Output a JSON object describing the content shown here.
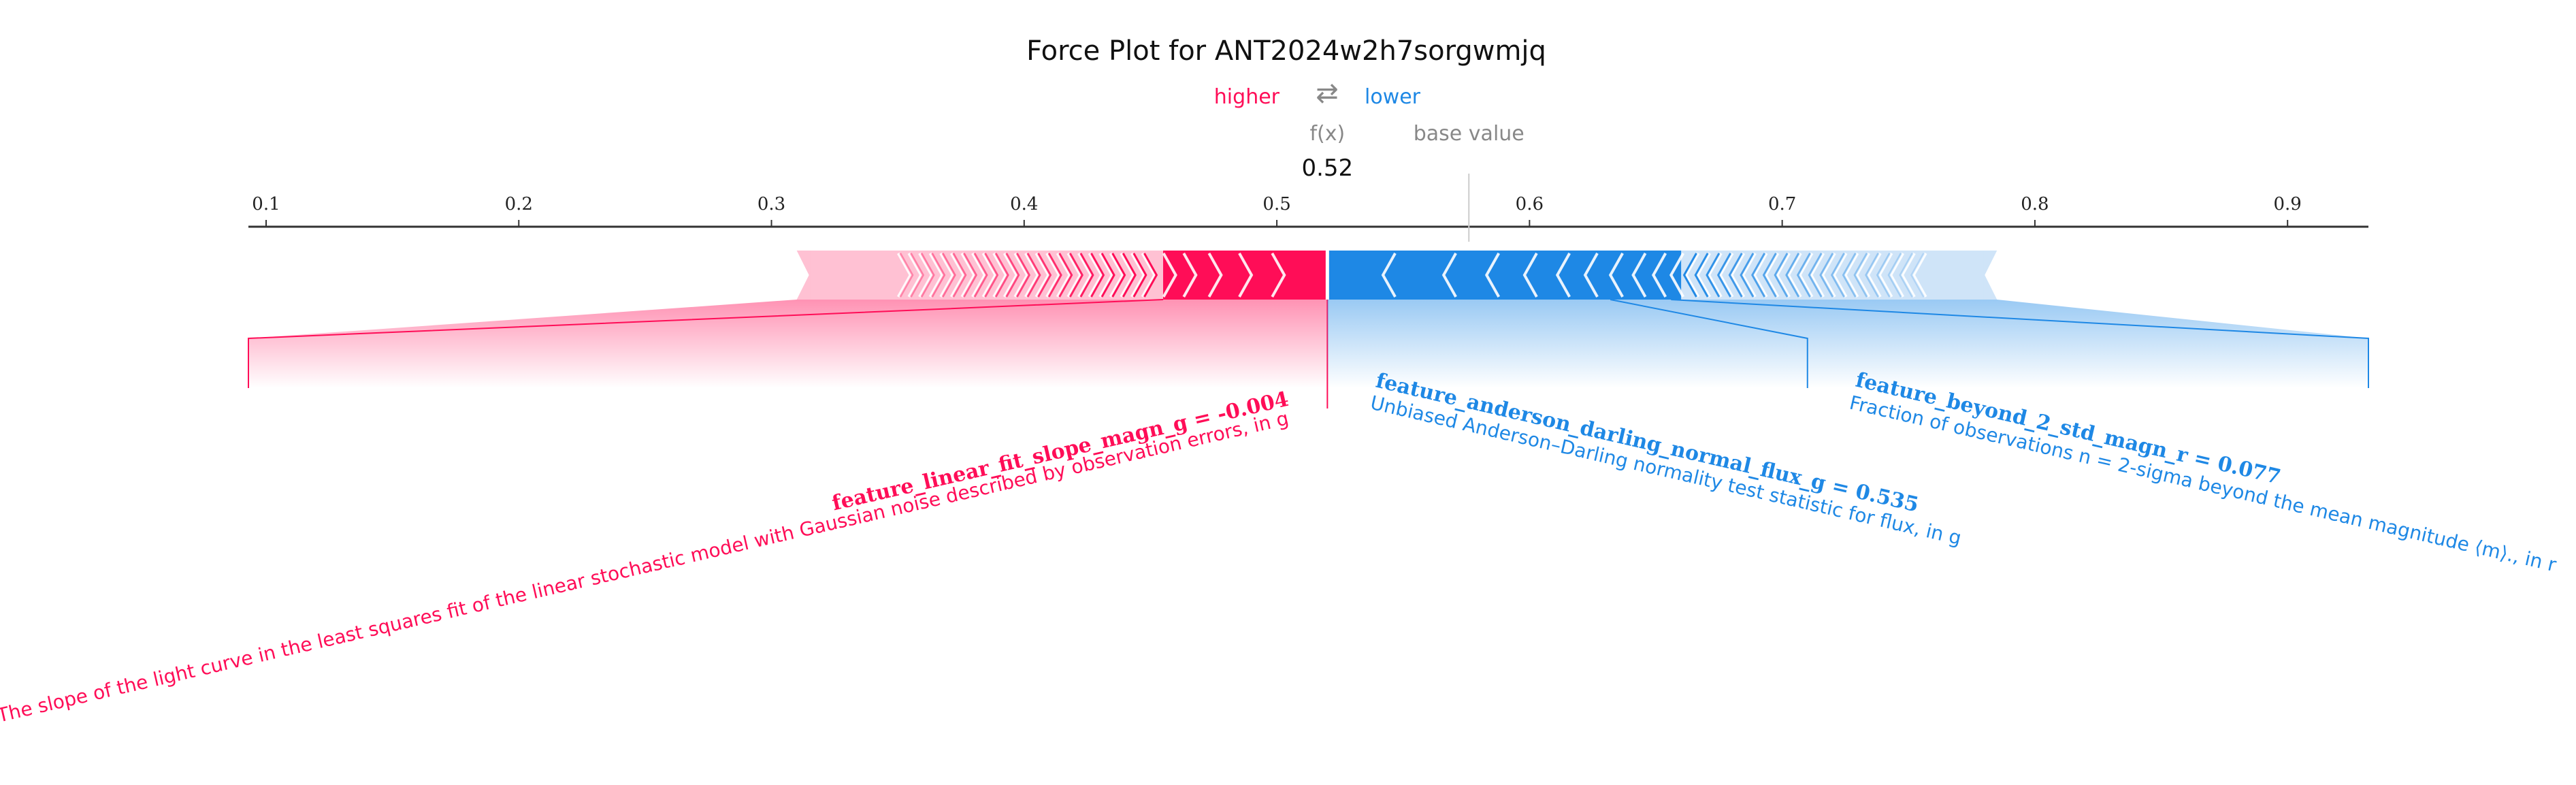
{
  "chart_data": {
    "type": "force_plot",
    "title": "Force Plot for ANT2024w2h7sorgwmjq",
    "legend": {
      "higher": "higher",
      "lower": "lower",
      "arrows": "⇄"
    },
    "fx_label": "f(x)",
    "base_value_label": "base value",
    "fx_value": 0.52,
    "fx_text": "0.52",
    "base_value": 0.576,
    "axis": {
      "range": [
        0.093,
        0.932
      ],
      "ticks": [
        0.1,
        0.2,
        0.3,
        0.4,
        0.5,
        0.6,
        0.7,
        0.8,
        0.9
      ],
      "tick_labels": [
        "0.1",
        "0.2",
        "0.3",
        "0.4",
        "0.5",
        "0.6",
        "0.7",
        "0.8",
        "0.9"
      ]
    },
    "positive_range": [
      0.31,
      0.52
    ],
    "negative_range": [
      0.52,
      0.785
    ],
    "annotations": [
      {
        "side": "higher",
        "label": "feature_linear_fit_slope_magn_g = -0.004",
        "description": "The slope of the light curve in the least squares fit of the linear stochastic model with Gaussian noise described by observation errors, in g",
        "segment": [
          0.31,
          0.52
        ]
      },
      {
        "side": "lower",
        "label": "feature_anderson_darling_normal_flux_g = 0.535",
        "description": "Unbiased Anderson–Darling normality test statistic for flux, in g",
        "segment": [
          0.52,
          0.71
        ]
      },
      {
        "side": "lower",
        "label": "feature_beyond_2_std_magn_r = 0.077",
        "description": "Fraction of observations n = 2-sigma beyond the mean magnitude ⟨m⟩., in r",
        "segment": [
          0.71,
          0.785
        ]
      }
    ],
    "colors": {
      "positive": "#ff0d57",
      "negative": "#1e88e5",
      "axis": "#333333",
      "muted": "#888888"
    }
  }
}
